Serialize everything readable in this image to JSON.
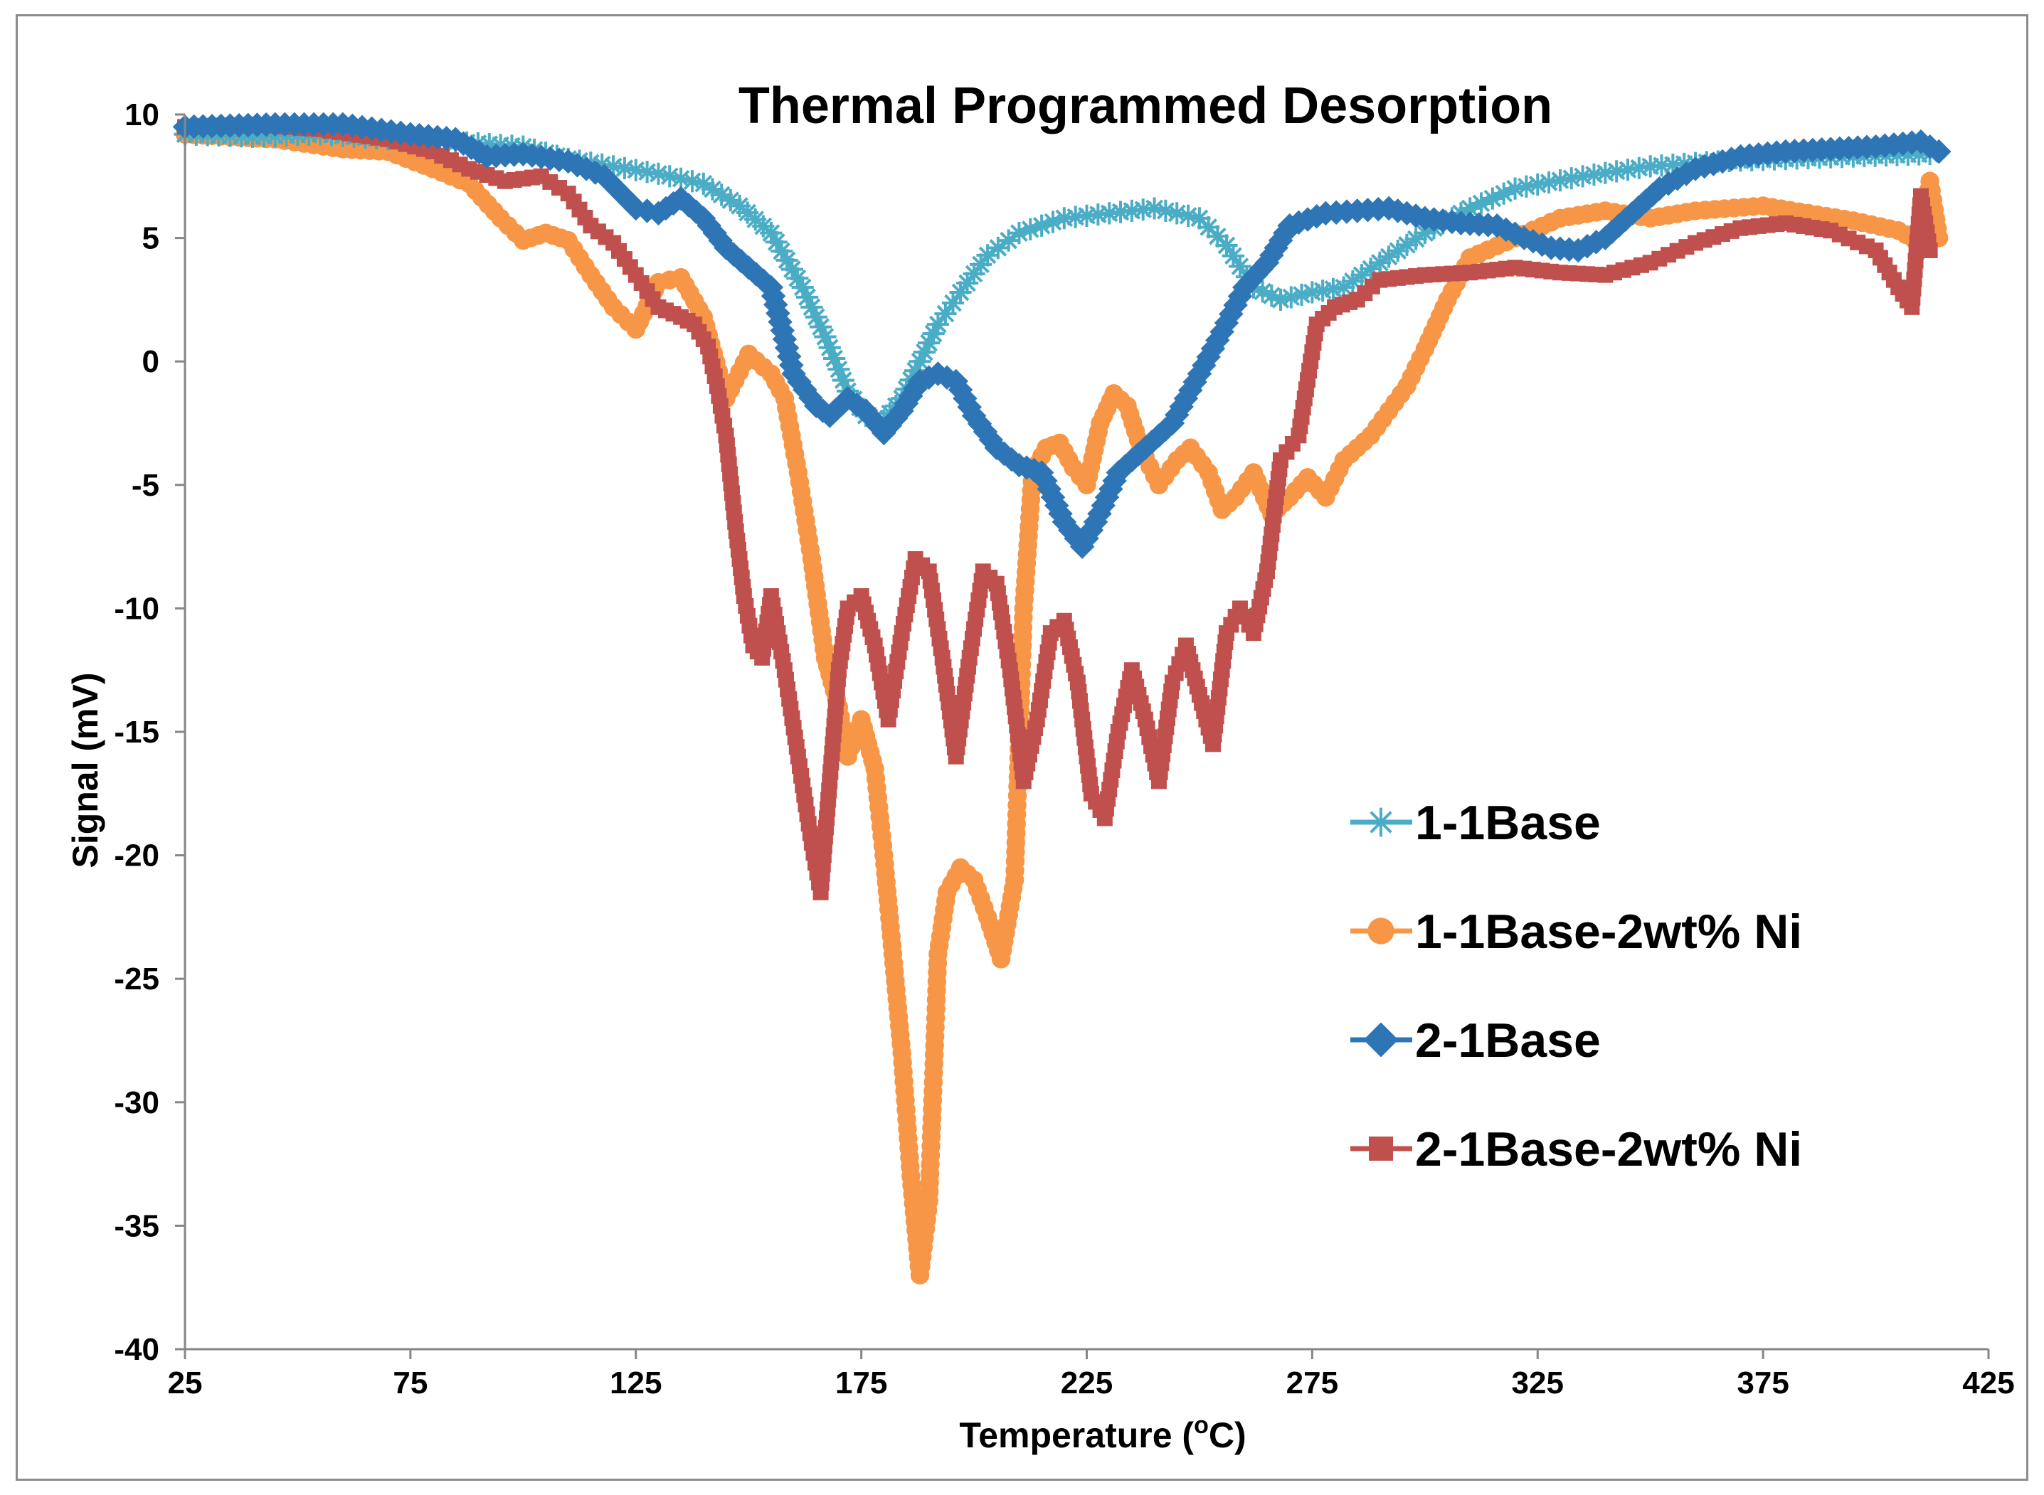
{
  "chart_data": {
    "type": "line",
    "title": "Thermal Programmed Desorption",
    "xlabel": "Temperature (°C)",
    "xlabel_parts": {
      "prefix": "Temperature (",
      "sup": "o",
      "suffix": "C)"
    },
    "ylabel": "Signal (mV)",
    "xlim": [
      25,
      425
    ],
    "ylim": [
      -40,
      10
    ],
    "x_ticks": [
      "25",
      "75",
      "125",
      "175",
      "225",
      "275",
      "325",
      "375",
      "425"
    ],
    "y_ticks": [
      "10",
      "5",
      "0",
      "-5",
      "-10",
      "-15",
      "-20",
      "-25",
      "-30",
      "-35",
      "-40"
    ],
    "legend_position": "right-middle",
    "series": [
      {
        "name": "1-1Base",
        "color": "#4bacc6",
        "marker": "asterisk",
        "points": [
          [
            25,
            9.2
          ],
          [
            40,
            9.1
          ],
          [
            55,
            9.2
          ],
          [
            70,
            9.0
          ],
          [
            85,
            8.9
          ],
          [
            100,
            8.7
          ],
          [
            110,
            8.2
          ],
          [
            120,
            7.9
          ],
          [
            130,
            7.6
          ],
          [
            140,
            7.2
          ],
          [
            148,
            6.3
          ],
          [
            155,
            5.2
          ],
          [
            162,
            3.0
          ],
          [
            167,
            1.0
          ],
          [
            172,
            -1.2
          ],
          [
            176,
            -2.2
          ],
          [
            180,
            -2.4
          ],
          [
            184,
            -1.5
          ],
          [
            188,
            0.0
          ],
          [
            192,
            1.5
          ],
          [
            197,
            2.8
          ],
          [
            203,
            4.3
          ],
          [
            210,
            5.2
          ],
          [
            220,
            5.8
          ],
          [
            230,
            6.0
          ],
          [
            240,
            6.2
          ],
          [
            250,
            5.8
          ],
          [
            256,
            4.7
          ],
          [
            262,
            3.0
          ],
          [
            268,
            2.5
          ],
          [
            275,
            2.8
          ],
          [
            282,
            3.0
          ],
          [
            290,
            4.0
          ],
          [
            300,
            5.2
          ],
          [
            310,
            6.2
          ],
          [
            320,
            7.0
          ],
          [
            335,
            7.5
          ],
          [
            350,
            7.9
          ],
          [
            365,
            8.1
          ],
          [
            380,
            8.2
          ],
          [
            395,
            8.3
          ],
          [
            412,
            8.4
          ]
        ]
      },
      {
        "name": "1-1Base-2wt% Ni",
        "color": "#f79646",
        "marker": "circle",
        "points": [
          [
            25,
            9.2
          ],
          [
            45,
            9.0
          ],
          [
            60,
            8.6
          ],
          [
            70,
            8.5
          ],
          [
            80,
            7.8
          ],
          [
            88,
            7.2
          ],
          [
            95,
            5.8
          ],
          [
            100,
            4.9
          ],
          [
            105,
            5.2
          ],
          [
            110,
            4.9
          ],
          [
            115,
            3.5
          ],
          [
            120,
            2.2
          ],
          [
            125,
            1.3
          ],
          [
            130,
            3.2
          ],
          [
            135,
            3.4
          ],
          [
            140,
            1.8
          ],
          [
            145,
            -1.5
          ],
          [
            150,
            0.3
          ],
          [
            155,
            -0.5
          ],
          [
            158,
            -1.5
          ],
          [
            161,
            -4.5
          ],
          [
            164,
            -8.0
          ],
          [
            167,
            -12.0
          ],
          [
            170,
            -14.0
          ],
          [
            172,
            -16.0
          ],
          [
            175,
            -14.5
          ],
          [
            178,
            -16.5
          ],
          [
            180,
            -20.0
          ],
          [
            182,
            -24.0
          ],
          [
            184,
            -28.0
          ],
          [
            186,
            -33.0
          ],
          [
            188,
            -37.0
          ],
          [
            190,
            -34.0
          ],
          [
            192,
            -24.0
          ],
          [
            194,
            -21.5
          ],
          [
            197,
            -20.5
          ],
          [
            200,
            -21.0
          ],
          [
            203,
            -22.5
          ],
          [
            206,
            -24.2
          ],
          [
            209,
            -21.0
          ],
          [
            211,
            -10.0
          ],
          [
            213,
            -4.5
          ],
          [
            216,
            -3.5
          ],
          [
            219,
            -3.3
          ],
          [
            222,
            -4.3
          ],
          [
            225,
            -5.0
          ],
          [
            228,
            -2.5
          ],
          [
            231,
            -1.3
          ],
          [
            234,
            -1.8
          ],
          [
            237,
            -3.5
          ],
          [
            241,
            -5.0
          ],
          [
            245,
            -4.0
          ],
          [
            248,
            -3.5
          ],
          [
            252,
            -4.5
          ],
          [
            255,
            -6.0
          ],
          [
            258,
            -5.5
          ],
          [
            262,
            -4.5
          ],
          [
            266,
            -6.2
          ],
          [
            270,
            -5.5
          ],
          [
            274,
            -4.7
          ],
          [
            278,
            -5.5
          ],
          [
            282,
            -4.0
          ],
          [
            288,
            -3.0
          ],
          [
            292,
            -2.0
          ],
          [
            296,
            -1.0
          ],
          [
            300,
            0.5
          ],
          [
            305,
            2.5
          ],
          [
            310,
            4.2
          ],
          [
            320,
            5.0
          ],
          [
            330,
            5.8
          ],
          [
            340,
            6.1
          ],
          [
            350,
            5.8
          ],
          [
            360,
            6.1
          ],
          [
            375,
            6.3
          ],
          [
            385,
            6.0
          ],
          [
            395,
            5.7
          ],
          [
            405,
            5.3
          ],
          [
            410,
            4.8
          ],
          [
            412,
            7.3
          ],
          [
            414,
            5.0
          ]
        ]
      },
      {
        "name": "2-1Base",
        "color": "#2e75b6",
        "marker": "diamond",
        "points": [
          [
            25,
            9.5
          ],
          [
            45,
            9.6
          ],
          [
            60,
            9.6
          ],
          [
            75,
            9.2
          ],
          [
            85,
            9.0
          ],
          [
            92,
            8.3
          ],
          [
            100,
            8.4
          ],
          [
            110,
            8.1
          ],
          [
            118,
            7.5
          ],
          [
            125,
            6.2
          ],
          [
            130,
            6.0
          ],
          [
            135,
            6.6
          ],
          [
            140,
            5.8
          ],
          [
            145,
            4.6
          ],
          [
            150,
            3.8
          ],
          [
            155,
            3.0
          ],
          [
            160,
            -0.5
          ],
          [
            165,
            -1.8
          ],
          [
            168,
            -2.2
          ],
          [
            172,
            -1.5
          ],
          [
            176,
            -2.0
          ],
          [
            180,
            -2.9
          ],
          [
            184,
            -2.0
          ],
          [
            188,
            -0.8
          ],
          [
            192,
            -0.5
          ],
          [
            196,
            -0.8
          ],
          [
            200,
            -2.2
          ],
          [
            205,
            -3.5
          ],
          [
            210,
            -4.2
          ],
          [
            215,
            -4.5
          ],
          [
            220,
            -6.5
          ],
          [
            224,
            -7.5
          ],
          [
            227,
            -6.5
          ],
          [
            232,
            -4.5
          ],
          [
            238,
            -3.5
          ],
          [
            244,
            -2.5
          ],
          [
            250,
            -0.5
          ],
          [
            255,
            1.2
          ],
          [
            260,
            3.0
          ],
          [
            265,
            4.0
          ],
          [
            270,
            5.5
          ],
          [
            278,
            6.0
          ],
          [
            285,
            6.1
          ],
          [
            292,
            6.2
          ],
          [
            300,
            5.8
          ],
          [
            308,
            5.6
          ],
          [
            316,
            5.5
          ],
          [
            322,
            5.0
          ],
          [
            328,
            4.6
          ],
          [
            334,
            4.5
          ],
          [
            340,
            5.0
          ],
          [
            346,
            6.0
          ],
          [
            352,
            7.0
          ],
          [
            360,
            7.8
          ],
          [
            370,
            8.3
          ],
          [
            380,
            8.5
          ],
          [
            390,
            8.6
          ],
          [
            400,
            8.7
          ],
          [
            410,
            8.9
          ],
          [
            414,
            8.5
          ]
        ]
      },
      {
        "name": "2-1Base-2wt% Ni",
        "color": "#c0504d",
        "marker": "square",
        "points": [
          [
            25,
            9.5
          ],
          [
            40,
            9.6
          ],
          [
            55,
            9.4
          ],
          [
            70,
            9.0
          ],
          [
            80,
            8.5
          ],
          [
            88,
            7.8
          ],
          [
            96,
            7.3
          ],
          [
            104,
            7.5
          ],
          [
            110,
            6.8
          ],
          [
            115,
            5.5
          ],
          [
            120,
            4.8
          ],
          [
            125,
            3.5
          ],
          [
            130,
            2.2
          ],
          [
            135,
            1.8
          ],
          [
            138,
            1.5
          ],
          [
            141,
            0.6
          ],
          [
            143,
            -1.0
          ],
          [
            145,
            -3.0
          ],
          [
            147,
            -6.5
          ],
          [
            149,
            -9.5
          ],
          [
            151,
            -11.5
          ],
          [
            153,
            -12.0
          ],
          [
            155,
            -9.5
          ],
          [
            158,
            -12.5
          ],
          [
            161,
            -16.0
          ],
          [
            164,
            -19.5
          ],
          [
            166,
            -21.5
          ],
          [
            168,
            -17.0
          ],
          [
            170,
            -12.5
          ],
          [
            172,
            -10.0
          ],
          [
            175,
            -9.5
          ],
          [
            178,
            -11.5
          ],
          [
            181,
            -14.5
          ],
          [
            184,
            -11.0
          ],
          [
            187,
            -8.0
          ],
          [
            190,
            -8.5
          ],
          [
            193,
            -12.0
          ],
          [
            196,
            -16.0
          ],
          [
            199,
            -12.0
          ],
          [
            202,
            -8.5
          ],
          [
            205,
            -9.0
          ],
          [
            208,
            -12.5
          ],
          [
            211,
            -17.0
          ],
          [
            214,
            -14.5
          ],
          [
            217,
            -11.0
          ],
          [
            220,
            -10.5
          ],
          [
            223,
            -13.0
          ],
          [
            226,
            -17.5
          ],
          [
            229,
            -18.5
          ],
          [
            232,
            -15.0
          ],
          [
            235,
            -12.5
          ],
          [
            238,
            -14.5
          ],
          [
            241,
            -17.0
          ],
          [
            244,
            -13.0
          ],
          [
            247,
            -11.5
          ],
          [
            250,
            -13.5
          ],
          [
            253,
            -15.5
          ],
          [
            256,
            -11.0
          ],
          [
            259,
            -10.0
          ],
          [
            262,
            -11.0
          ],
          [
            265,
            -8.5
          ],
          [
            268,
            -4.0
          ],
          [
            272,
            -3.0
          ],
          [
            276,
            1.5
          ],
          [
            280,
            2.2
          ],
          [
            285,
            2.5
          ],
          [
            290,
            3.3
          ],
          [
            300,
            3.5
          ],
          [
            310,
            3.6
          ],
          [
            320,
            3.8
          ],
          [
            330,
            3.6
          ],
          [
            340,
            3.5
          ],
          [
            350,
            4.0
          ],
          [
            360,
            4.8
          ],
          [
            370,
            5.4
          ],
          [
            380,
            5.6
          ],
          [
            390,
            5.3
          ],
          [
            400,
            4.5
          ],
          [
            405,
            3.0
          ],
          [
            408,
            2.2
          ],
          [
            410,
            6.7
          ],
          [
            412,
            4.5
          ]
        ]
      }
    ]
  }
}
